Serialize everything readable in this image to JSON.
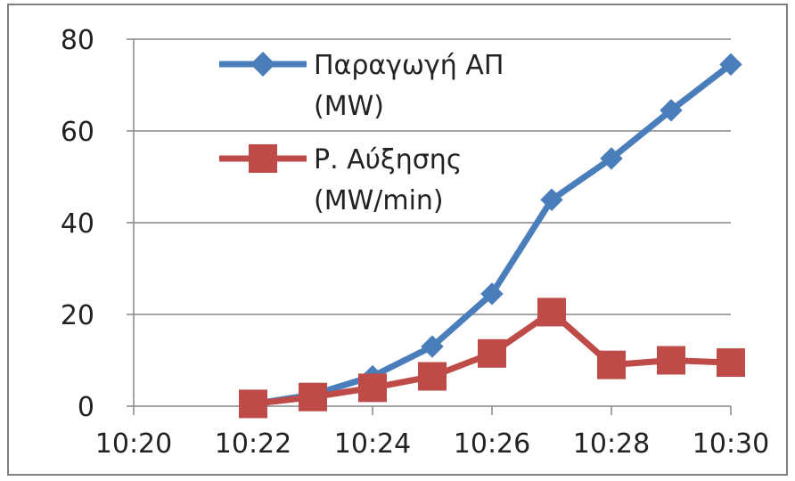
{
  "chart_data": {
    "type": "line",
    "title": "",
    "xlabel": "",
    "ylabel": "",
    "x": [
      "10:22",
      "10:23",
      "10:24",
      "10:25",
      "10:26",
      "10:27",
      "10:28",
      "10:29",
      "10:30"
    ],
    "x_ticks": [
      "10:20",
      "10:22",
      "10:24",
      "10:26",
      "10:28",
      "10:30"
    ],
    "xlim": [
      "10:20",
      "10:30"
    ],
    "y_ticks": [
      "0",
      "20",
      "40",
      "60",
      "80"
    ],
    "ylim": [
      0,
      80
    ],
    "grid": "horizontal",
    "legend_position": "top-center",
    "series": [
      {
        "name": "Παραγωγή ΑΠ (MW)",
        "legend_lines": [
          "Παραγωγή ΑΠ",
          "(MW)"
        ],
        "color": "#4a7ebb",
        "marker": "diamond",
        "values": [
          0.5,
          2.5,
          6.5,
          13,
          24.5,
          45,
          54,
          64.5,
          74.5
        ]
      },
      {
        "name": "Ρ. Αύξησης (MW/min)",
        "legend_lines": [
          "Ρ. Αύξησης",
          "(MW/min)"
        ],
        "color": "#be4b48",
        "marker": "square",
        "values": [
          0.5,
          2,
          4,
          6.5,
          11.5,
          20.5,
          9,
          10,
          9.5
        ]
      }
    ]
  }
}
